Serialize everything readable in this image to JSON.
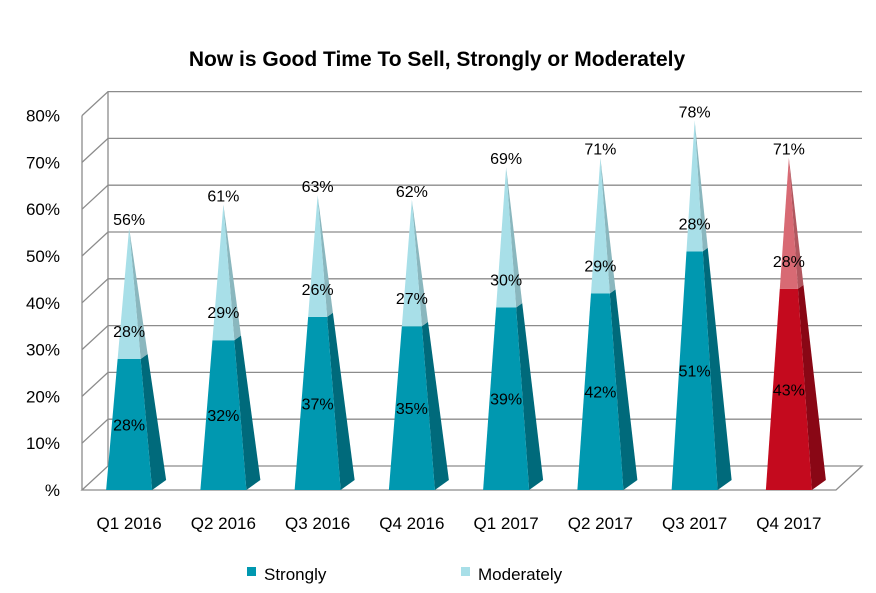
{
  "chart_data": {
    "type": "bar",
    "style": "3d-pyramid-stacked",
    "title": "Now is Good Time To Sell, Strongly or Moderately",
    "categories": [
      "Q1 2016",
      "Q2 2016",
      "Q3 2016",
      "Q4 2016",
      "Q1 2017",
      "Q2 2017",
      "Q3 2017",
      "Q4 2017"
    ],
    "series": [
      {
        "name": "Strongly",
        "values": [
          28,
          32,
          37,
          35,
          39,
          42,
          51,
          43
        ],
        "color": "#0098b0"
      },
      {
        "name": "Moderately",
        "values": [
          28,
          29,
          26,
          27,
          30,
          29,
          28,
          28
        ],
        "color": "#a8dfe8"
      }
    ],
    "total_labels": [
      "56%",
      "61%",
      "63%",
      "62%",
      "69%",
      "71%",
      "78%",
      "71%"
    ],
    "highlight": {
      "index": 7,
      "strongly_color": "#c40a1e",
      "moderately_color": "#d86a74"
    },
    "ylim": [
      0,
      80
    ],
    "yticks": [
      "%",
      "10%",
      "20%",
      "30%",
      "40%",
      "50%",
      "60%",
      "70%",
      "80%"
    ],
    "grid": true,
    "legend_position": "bottom"
  }
}
